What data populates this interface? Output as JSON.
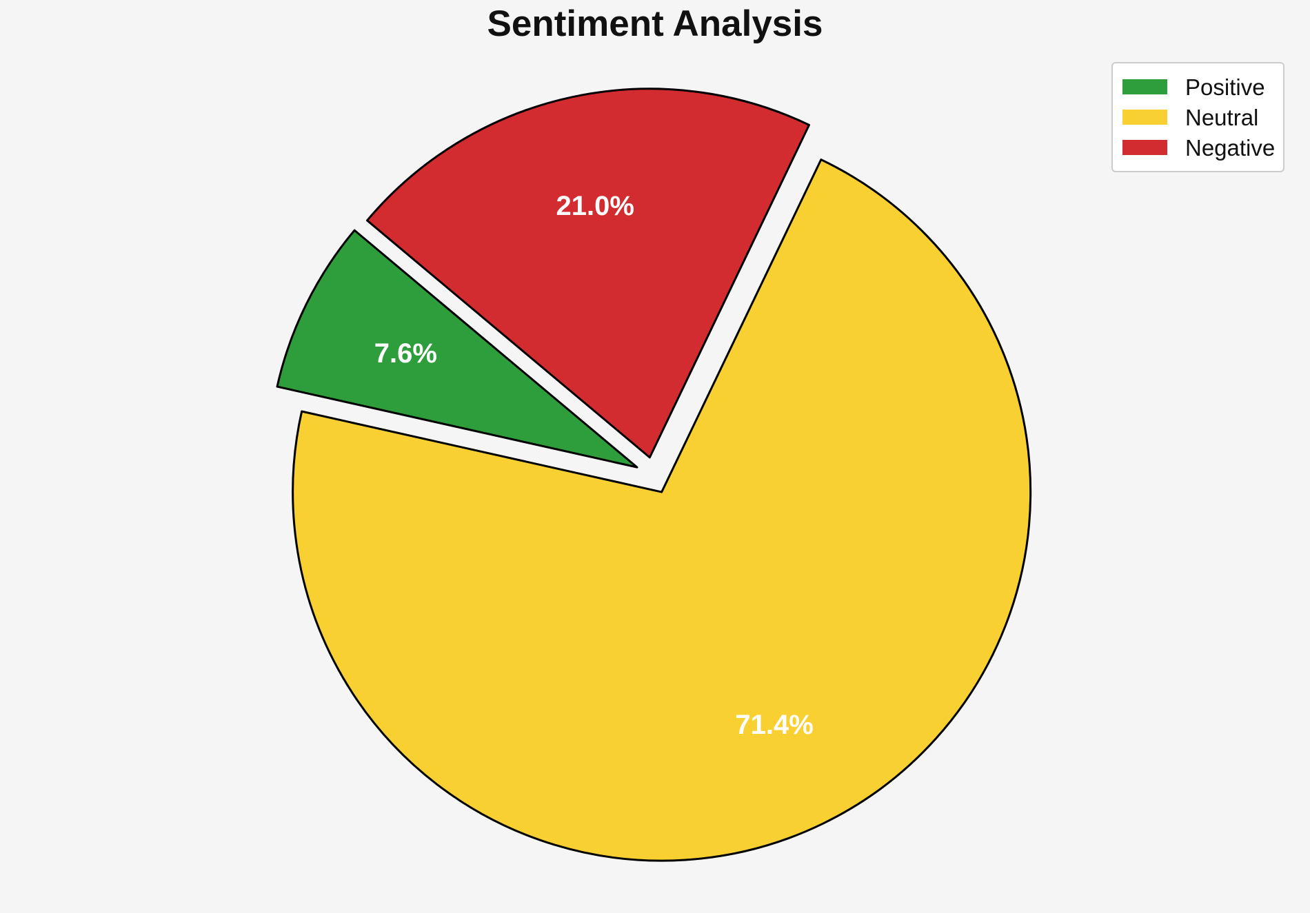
{
  "title": "Sentiment Analysis",
  "background_color": "#f5f5f5",
  "chart_data": {
    "type": "pie",
    "title": "Sentiment Analysis",
    "categories": [
      "Positive",
      "Neutral",
      "Negative"
    ],
    "values": [
      7.6,
      71.4,
      21.0
    ],
    "slice_labels": [
      "7.6%",
      "71.4%",
      "21.0%"
    ],
    "colors": [
      "#2e9e3c",
      "#f8d032",
      "#d32c30"
    ],
    "edge_color": "#000000",
    "label_color": "#ffffff",
    "start_angle": 140,
    "counterclockwise": true,
    "explode": [
      0.05,
      0.05,
      0.05
    ],
    "label_distance": 0.7,
    "legend": {
      "position": "upper right",
      "entries": [
        "Positive",
        "Neutral",
        "Negative"
      ]
    }
  }
}
